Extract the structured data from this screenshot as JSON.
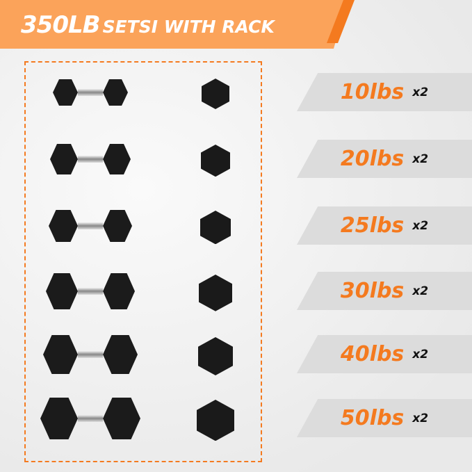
{
  "header": {
    "title_big": "350LB",
    "title_small": "SETSI WITH RACK"
  },
  "colors": {
    "accent": "#f47a1f",
    "banner": "#fba35a",
    "label_bg": "#dcdcdc"
  },
  "items": [
    {
      "weight": "10lbs",
      "qty": "x2"
    },
    {
      "weight": "20lbs",
      "qty": "x2"
    },
    {
      "weight": "25lbs",
      "qty": "x2"
    },
    {
      "weight": "30lbs",
      "qty": "x2"
    },
    {
      "weight": "40lbs",
      "qty": "x2"
    },
    {
      "weight": "50lbs",
      "qty": "x2"
    }
  ]
}
